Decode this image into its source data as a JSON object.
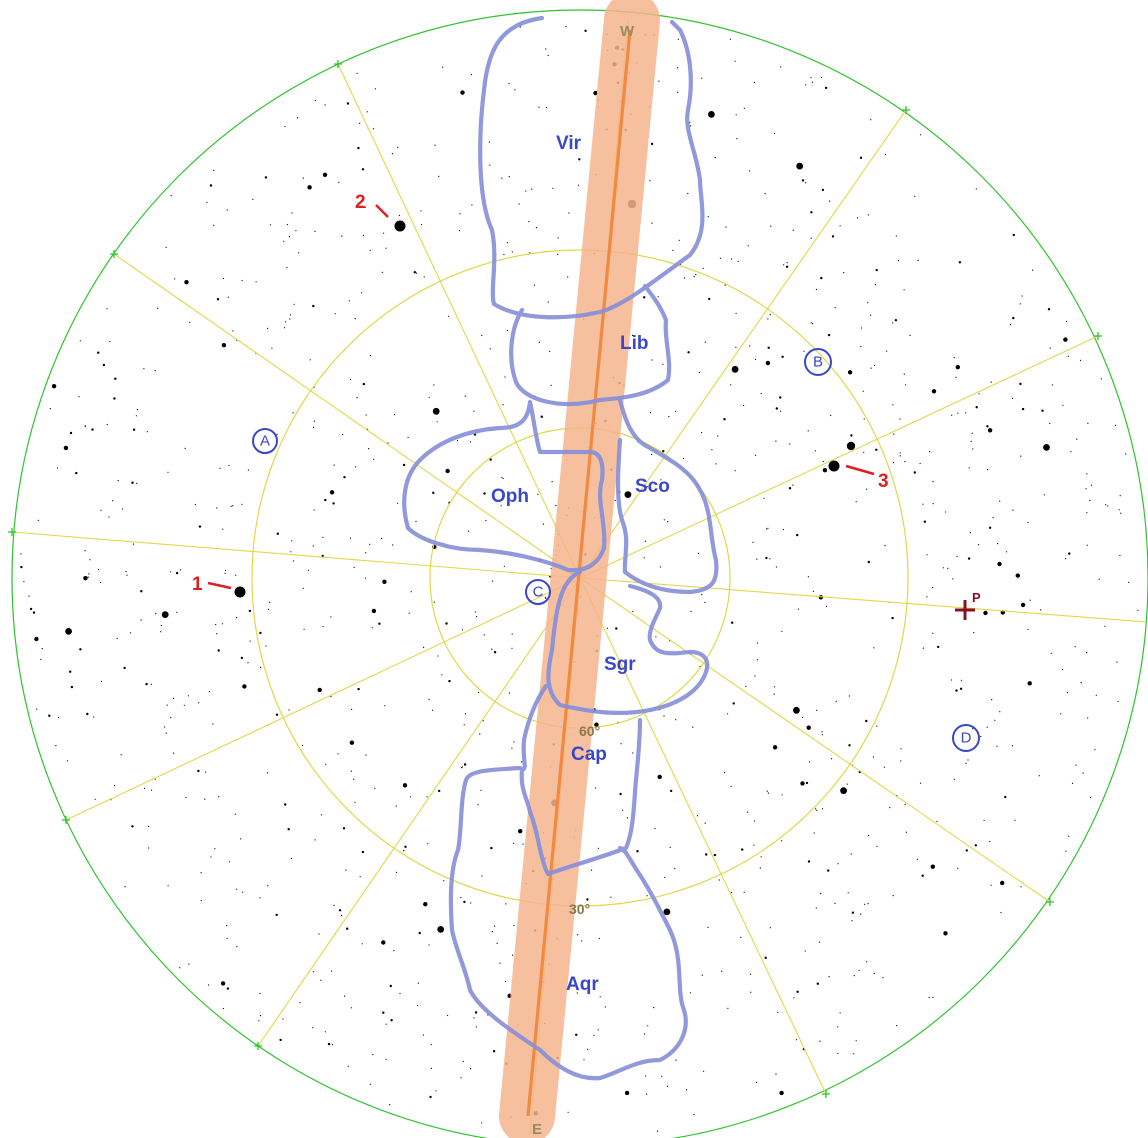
{
  "compass": {
    "west": "W",
    "east": "E"
  },
  "altitudes": {
    "sixty": "60°",
    "thirty": "30°"
  },
  "constellations": {
    "vir": "Vir",
    "lib": "Lib",
    "oph": "Oph",
    "sco": "Sco",
    "sgr": "Sgr",
    "cap": "Cap",
    "aqr": "Aqr"
  },
  "markers": {
    "a": "A",
    "b": "B",
    "c": "C",
    "d": "D"
  },
  "numbered": {
    "one": "1",
    "two": "2",
    "three": "3"
  },
  "pole": {
    "label": "P"
  },
  "colors": {
    "horizon": "#2ec42e",
    "grid": "#e0d84a",
    "ecliptic_band": "#f5b48e",
    "ecliptic_line": "#f08a40",
    "constellation_outline": "#8890d8",
    "label_blue": "#3b47c8",
    "label_red": "#e02020",
    "pole": "#8b1020"
  }
}
